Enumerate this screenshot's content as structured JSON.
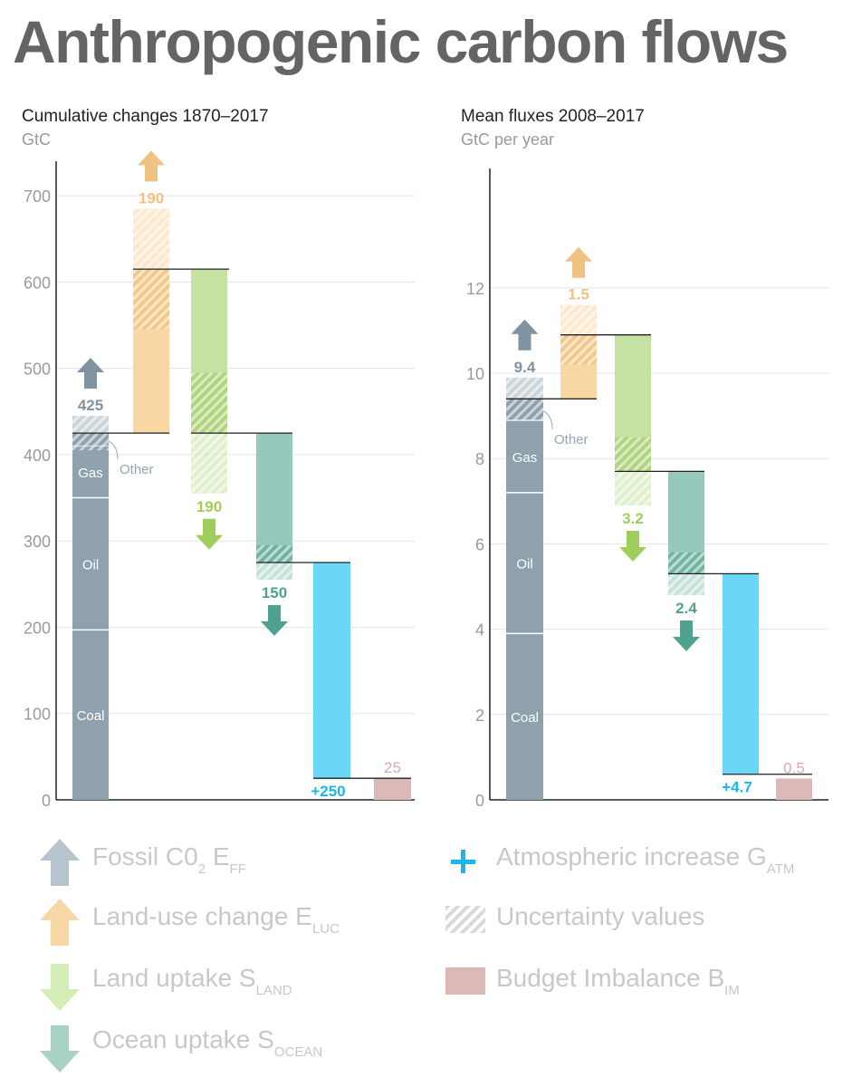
{
  "title": "Anthropogenic carbon flows",
  "colors": {
    "fossil": "#8fa1ad",
    "landuse": "#f8d7a4",
    "landuse_dark": "#f1c27f",
    "land": "#c6e2a3",
    "land_dark": "#a7d06e",
    "ocean": "#96c9bb",
    "ocean_dark": "#63ab97",
    "atm": "#6ad8f4",
    "atm_text": "#1ab8e8",
    "imbalance": "#dcb8b6",
    "fossil_arrow": "#7f93a0",
    "landuse_arrow": "#f0c382",
    "land_arrow": "#9fce5a",
    "ocean_arrow": "#4fa38e",
    "imbalance_text": "#d9a9a7",
    "legend_text": "#c8c8c8"
  },
  "chart_data": [
    {
      "type": "bar",
      "subtype": "waterfall",
      "title": "Cumulative changes 1870–2017",
      "ylabel": "GtC",
      "ylim": [
        0,
        740
      ],
      "yticks": [
        0,
        100,
        200,
        300,
        400,
        500,
        600,
        700
      ],
      "fossil": {
        "value": 425,
        "label": "425",
        "uncertainty": 20,
        "segments": [
          {
            "name": "Coal",
            "from": 0,
            "to": 197
          },
          {
            "name": "Oil",
            "from": 197,
            "to": 350
          },
          {
            "name": "Gas",
            "from": 350,
            "to": 410
          },
          {
            "name": "Other",
            "from": 410,
            "to": 425
          }
        ]
      },
      "land_use_change": {
        "value": 190,
        "label": "190",
        "uncertainty": 70
      },
      "land_uptake": {
        "value": 190,
        "label": "190",
        "uncertainty": 70
      },
      "ocean_uptake": {
        "value": 150,
        "label": "150",
        "uncertainty": 20
      },
      "atmospheric_increase": {
        "value": 250,
        "label": "+250"
      },
      "budget_imbalance": {
        "value": 25,
        "label": "25"
      }
    },
    {
      "type": "bar",
      "subtype": "waterfall",
      "title": "Mean fluxes 2008–2017",
      "ylabel": "GtC per year",
      "ylim": [
        0,
        14.8
      ],
      "yticks": [
        0,
        2,
        4,
        6,
        8,
        10,
        12
      ],
      "fossil": {
        "value": 9.4,
        "label": "9.4",
        "uncertainty": 0.5,
        "segments": [
          {
            "name": "Coal",
            "from": 0,
            "to": 3.9
          },
          {
            "name": "Oil",
            "from": 3.9,
            "to": 7.2
          },
          {
            "name": "Gas",
            "from": 7.2,
            "to": 8.9
          },
          {
            "name": "Other",
            "from": 8.9,
            "to": 9.4
          }
        ]
      },
      "land_use_change": {
        "value": 1.5,
        "label": "1.5",
        "uncertainty": 0.7
      },
      "land_uptake": {
        "value": 3.2,
        "label": "3.2",
        "uncertainty": 0.8
      },
      "ocean_uptake": {
        "value": 2.4,
        "label": "2.4",
        "uncertainty": 0.5
      },
      "atmospheric_increase": {
        "value": 4.7,
        "label": "+4.7"
      },
      "budget_imbalance": {
        "value": 0.5,
        "label": "0.5"
      }
    }
  ],
  "legend": [
    {
      "key": "fossil",
      "text": "Fossil C0",
      "sub2": "2",
      "mid": " E",
      "sub": "FF"
    },
    {
      "key": "landuse",
      "text": "Land-use change E",
      "sub": "LUC"
    },
    {
      "key": "land",
      "text": "Land uptake S",
      "sub": "LAND"
    },
    {
      "key": "ocean",
      "text": "Ocean uptake S",
      "sub": "OCEAN"
    },
    {
      "key": "atm",
      "text": "Atmospheric increase G",
      "sub": "ATM"
    },
    {
      "key": "uncertainty",
      "text": "Uncertainty values"
    },
    {
      "key": "imbalance",
      "text": "Budget Imbalance B",
      "sub": "IM"
    }
  ]
}
